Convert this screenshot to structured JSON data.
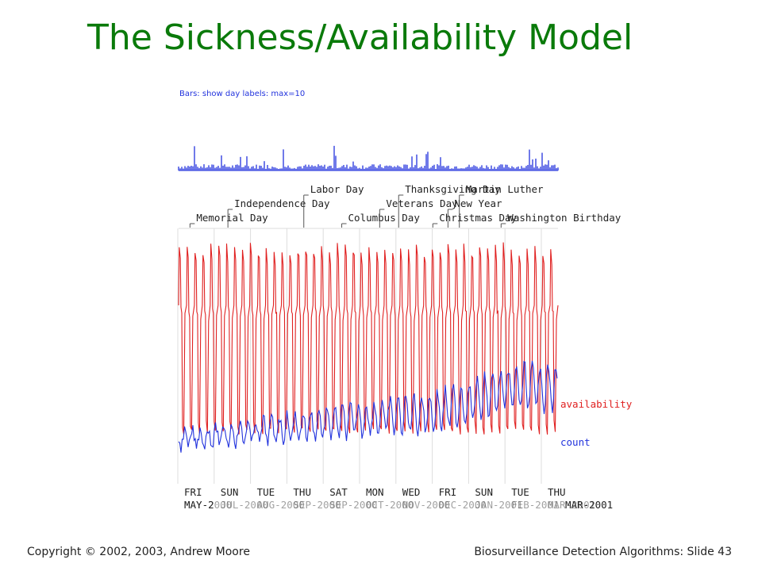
{
  "slide": {
    "title": "The Sickness/Availability Model",
    "footer_left": "Copyright © 2002, 2003, Andrew Moore",
    "footer_right": "Biosurveillance Detection Algorithms: Slide 43"
  },
  "chart_data": {
    "type": "line",
    "title": "",
    "small_plot_label": "Bars: show day labels: max=10",
    "holidays": [
      {
        "label": "Memorial Day",
        "tier": 3,
        "x": 0.03
      },
      {
        "label": "Independence Day",
        "tier": 2,
        "x": 0.13
      },
      {
        "label": "Labor Day",
        "tier": 1,
        "x": 0.33
      },
      {
        "label": "Columbus Day",
        "tier": 3,
        "x": 0.43
      },
      {
        "label": "Veterans Day",
        "tier": 2,
        "x": 0.53
      },
      {
        "label": "Thanksgiving Day",
        "tier": 1,
        "x": 0.58
      },
      {
        "label": "Christmas Day",
        "tier": 3,
        "x": 0.67
      },
      {
        "label": "New Year",
        "tier": 2,
        "x": 0.71
      },
      {
        "label": "Martin Luther",
        "tier": 1,
        "x": 0.74
      },
      {
        "label": "Washington Birthday",
        "tier": 3,
        "x": 0.85
      }
    ],
    "series": [
      {
        "name": "availability",
        "color": "#e02020"
      },
      {
        "name": "count",
        "color": "#2233dd"
      }
    ],
    "x_ticks": [
      {
        "day": "FRI",
        "date": "MAY-2000"
      },
      {
        "day": "SUN",
        "date": "JUL-2000"
      },
      {
        "day": "TUE",
        "date": "AUG-2000"
      },
      {
        "day": "THU",
        "date": "SEP-2000"
      },
      {
        "day": "SAT",
        "date": "SEP-2000"
      },
      {
        "day": "MON",
        "date": "OCT-2000"
      },
      {
        "day": "WED",
        "date": "NOV-2000"
      },
      {
        "day": "FRI",
        "date": "DEC-2000"
      },
      {
        "day": "SUN",
        "date": "JAN-2001"
      },
      {
        "day": "TUE",
        "date": "FEB-2001"
      },
      {
        "day": "THU",
        "date": "MAR-2001"
      }
    ],
    "x_date_first": "MAY-2",
    "x_date_last": "MAR-2001",
    "colors": {
      "title": "#0a7a0a",
      "red": "#e02020",
      "blue": "#2233dd",
      "gray": "#555555"
    }
  }
}
